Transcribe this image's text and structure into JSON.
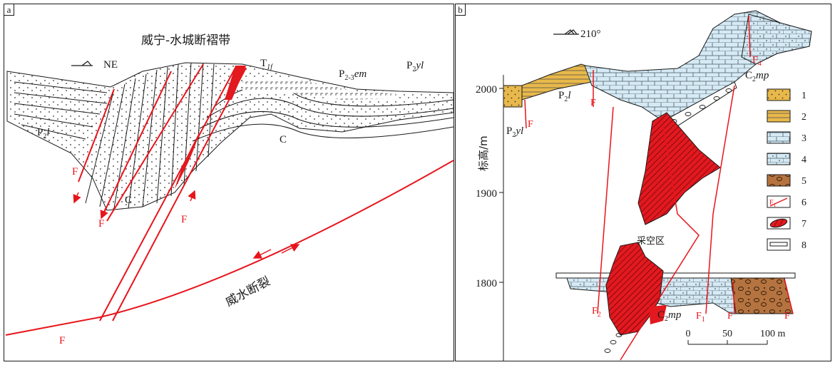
{
  "colors": {
    "fault": "#e8141b",
    "orebody": "#e2191f",
    "limestone_blue": "#d5eaf4",
    "sandstone_yellow": "#e8b84a",
    "conglomerate_brown": "#b5733f",
    "line": "#1a1a1a"
  },
  "panel_a": {
    "panel_label": "a",
    "belt_name": "威宁-水城断褶带",
    "direction": "NE",
    "strata": {
      "t1f": "T",
      "t1f_sub": "1f",
      "p23em_p": "P",
      "p23em_sub": "2-3",
      "p23em_sym": "em",
      "p2yl_p": "P",
      "p2yl_sub": "2",
      "p2yl_sym": "yl",
      "p2l_p": "P",
      "p2l_sub": "2",
      "p2l_sym": "l",
      "c_left": "C",
      "c_right": "C"
    },
    "faults": {
      "f1": "F",
      "f2": "F",
      "f3": "F",
      "f4": "F"
    },
    "fault_name": "威水断裂"
  },
  "panel_b": {
    "panel_label": "b",
    "direction": "210°",
    "y_axis": {
      "label": "标高/m",
      "ticks": [
        "2000",
        "1900",
        "1800"
      ]
    },
    "strata": {
      "p2yl_p": "P",
      "p2yl_sub": "2",
      "p2yl_sym": "yl",
      "p2l_p": "P",
      "p2l_sub": "2",
      "p2l_sym": "l",
      "c2mp_top_c": "C",
      "c2mp_top_sub": "2",
      "c2mp_top_sym": "mp",
      "c2mp_bot_c": "C",
      "c2mp_bot_sub": "2",
      "c2mp_bot_sym": "mp"
    },
    "faults": {
      "f_upper_left": "F",
      "f_upper_mid": "F",
      "f4": "F",
      "f4_sub": "4",
      "f2": "F",
      "f2_sub": "2",
      "f1": "F",
      "f1_sub": "1",
      "f_right1": "F",
      "f_right2": "F"
    },
    "goaf_label": "采空区",
    "scale": {
      "ticks": [
        "0",
        "50",
        "100 m"
      ]
    },
    "legend": [
      {
        "num": "1",
        "name": "sandstone"
      },
      {
        "num": "2",
        "name": "sandstone-yellow"
      },
      {
        "num": "3",
        "name": "limestone"
      },
      {
        "num": "4",
        "name": "dolomitic-limestone"
      },
      {
        "num": "5",
        "name": "breccia"
      },
      {
        "num": "6",
        "name": "fault"
      },
      {
        "num": "7",
        "name": "orebody"
      },
      {
        "num": "8",
        "name": "roadway"
      }
    ],
    "fault_legend_sym": "F",
    "fault_legend_sub": "1"
  }
}
